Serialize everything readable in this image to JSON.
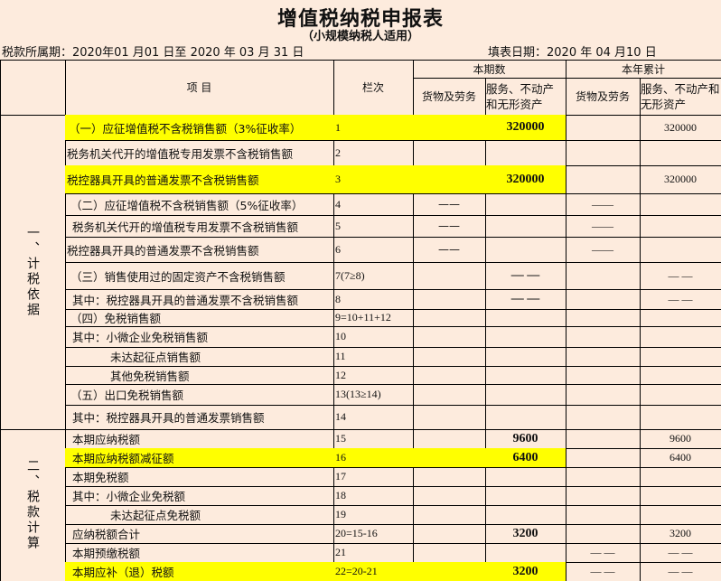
{
  "title": "增值税纳税申报表",
  "subtitle": "（小规模纳税人适用）",
  "period": "税款所属期：2020年01 月01 日至 2020  年 03 月 31 日",
  "fill_date": "填表日期：2020 年 04 月10 日",
  "header": {
    "item": "项  目",
    "column": "栏次",
    "current": "本期数",
    "ytd": "本年累计",
    "goods": "货物及劳务",
    "services": "服务、不动产和无形资产"
  },
  "sections": [
    {
      "label": "一、计税依据"
    },
    {
      "label": "二、税款计算"
    }
  ],
  "highlight_color": "#ffff00",
  "rows": [
    {
      "item": "（一）应征增值税不含税销售额（3%征收率）",
      "col": "1",
      "goods": "",
      "services": "320000",
      "ytd_goods": "",
      "ytd_services": "320000",
      "highlight": true
    },
    {
      "item": "税务机关代开的增值税专用发票不含税销售额",
      "col": "2",
      "goods": "",
      "services": "",
      "ytd_goods": "",
      "ytd_services": "",
      "highlight": false
    },
    {
      "item": "税控器具开具的普通发票不含税销售额",
      "col": "3",
      "goods": "",
      "services": "320000",
      "ytd_goods": "",
      "ytd_services": "320000",
      "highlight": true
    },
    {
      "item": "（二）应征增值税不含税销售额（5%征收率）",
      "col": "4",
      "goods": "——",
      "services": "",
      "ytd_goods": "——",
      "ytd_services": "",
      "highlight": false
    },
    {
      "item": "税务机关代开的增值税专用发票不含税销售额",
      "col": "5",
      "goods": "——",
      "services": "",
      "ytd_goods": "——",
      "ytd_services": "",
      "highlight": false
    },
    {
      "item": "税控器具开具的普通发票不含税销售额",
      "col": "6",
      "goods": "——",
      "services": "",
      "ytd_goods": "——",
      "ytd_services": "",
      "highlight": false
    },
    {
      "item": "（三）销售使用过的固定资产不含税销售额",
      "col": "7(7≥8)",
      "goods": "",
      "services": "— —",
      "ytd_goods": "",
      "ytd_services": "— —",
      "highlight": false
    },
    {
      "item": "其中：税控器具开具的普通发票不含税销售额",
      "col": "8",
      "goods": "",
      "services": "— —",
      "ytd_goods": "",
      "ytd_services": "— —",
      "highlight": false
    },
    {
      "item": "（四）免税销售额",
      "col": "9=10+11+12",
      "goods": "",
      "services": "",
      "ytd_goods": "",
      "ytd_services": "",
      "highlight": false
    },
    {
      "item": "其中：小微企业免税销售额",
      "col": "10",
      "goods": "",
      "services": "",
      "ytd_goods": "",
      "ytd_services": "",
      "highlight": false
    },
    {
      "item": "未达起征点销售额",
      "col": "11",
      "goods": "",
      "services": "",
      "ytd_goods": "",
      "ytd_services": "",
      "highlight": false
    },
    {
      "item": "其他免税销售额",
      "col": "12",
      "goods": "",
      "services": "",
      "ytd_goods": "",
      "ytd_services": "",
      "highlight": false
    },
    {
      "item": "（五）出口免税销售额",
      "col": "13(13≥14)",
      "goods": "",
      "services": "",
      "ytd_goods": "",
      "ytd_services": "",
      "highlight": false
    },
    {
      "item": "其中：税控器具开具的普通发票销售额",
      "col": "14",
      "goods": "",
      "services": "",
      "ytd_goods": "",
      "ytd_services": "",
      "highlight": false
    },
    {
      "item": "本期应纳税额",
      "col": "15",
      "goods": "",
      "services": "9600",
      "ytd_goods": "",
      "ytd_services": "9600",
      "highlight": false
    },
    {
      "item": "本期应纳税额减征额",
      "col": "16",
      "goods": "",
      "services": "6400",
      "ytd_goods": "",
      "ytd_services": "6400",
      "highlight": true
    },
    {
      "item": "本期免税额",
      "col": "17",
      "goods": "",
      "services": "",
      "ytd_goods": "",
      "ytd_services": "",
      "highlight": false
    },
    {
      "item": "其中：小微企业免税额",
      "col": "18",
      "goods": "",
      "services": "",
      "ytd_goods": "",
      "ytd_services": "",
      "highlight": false
    },
    {
      "item": "未达起征点免税额",
      "col": "19",
      "goods": "",
      "services": "",
      "ytd_goods": "",
      "ytd_services": "",
      "highlight": false
    },
    {
      "item": "应纳税额合计",
      "col": "20=15-16",
      "goods": "",
      "services": "3200",
      "ytd_goods": "",
      "ytd_services": "3200",
      "highlight": false
    },
    {
      "item": "本期预缴税额",
      "col": "21",
      "goods": "",
      "services": "",
      "ytd_goods": "— —",
      "ytd_services": "— —",
      "highlight": false
    },
    {
      "item": "本期应补（退）税额",
      "col": "22=20-21",
      "goods": "",
      "services": "3200",
      "ytd_goods": "— —",
      "ytd_services": "— —",
      "highlight": true
    }
  ]
}
